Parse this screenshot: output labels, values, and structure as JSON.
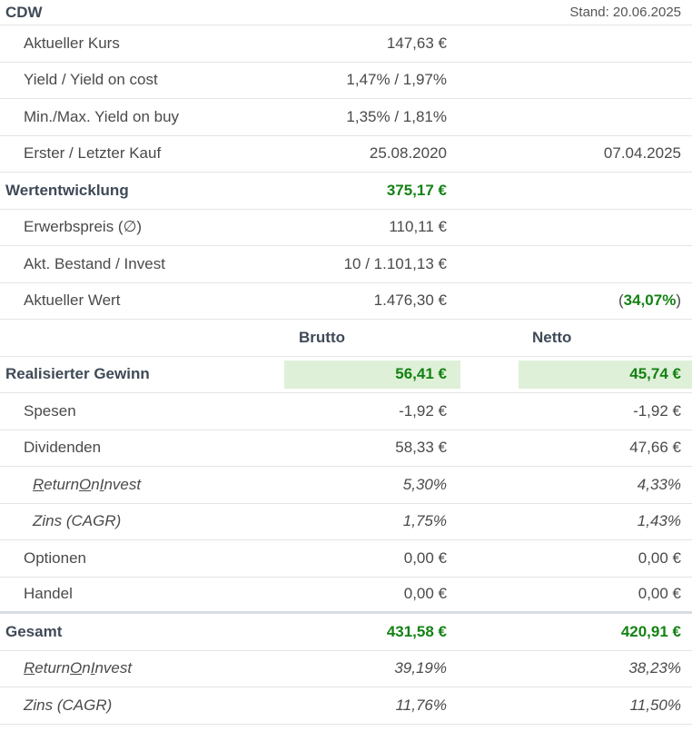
{
  "header": {
    "ticker": "CDW",
    "stand": "Stand: 20.06.2025"
  },
  "rows": {
    "kurs": {
      "label": "Aktueller Kurs",
      "value": "147,63 €"
    },
    "yield": {
      "label": "Yield / Yield on cost",
      "value": "1,47% / 1,97%"
    },
    "minmax": {
      "label": "Min./Max. Yield on buy",
      "value": "1,35% / 1,81%"
    },
    "kauf": {
      "label": "Erster / Letzter Kauf",
      "first": "25.08.2020",
      "last": "07.04.2025"
    },
    "wert_entw": {
      "label": "Wertentwicklung",
      "value": "375,17 €"
    },
    "erwerb": {
      "label": "Erwerbspreis (∅)",
      "value": "110,11 €"
    },
    "bestand": {
      "label": "Akt. Bestand / Invest",
      "value": "10 / 1.101,13 €"
    },
    "akt_wert": {
      "label": "Aktueller Wert",
      "value": "1.476,30 €",
      "pct_open": "(",
      "pct": "34,07%",
      "pct_close": ")"
    }
  },
  "columns": {
    "brutto": "Brutto",
    "netto": "Netto"
  },
  "realisiert": {
    "label": "Realisierter Gewinn",
    "brutto": "56,41 €",
    "netto": "45,74 €"
  },
  "spesen": {
    "label": "Spesen",
    "brutto": "-1,92 €",
    "netto": "-1,92 €"
  },
  "dividenden": {
    "label": "Dividenden",
    "brutto": "58,33 €",
    "netto": "47,66 €"
  },
  "roi1": {
    "label_r": "R",
    "label_eturn": "eturn ",
    "label_o": "O",
    "label_n": "n ",
    "label_i": "I",
    "label_nvest": "nvest",
    "brutto": "5,30%",
    "netto": "4,33%"
  },
  "zins1": {
    "label": "Zins (CAGR)",
    "brutto": "1,75%",
    "netto": "1,43%"
  },
  "optionen": {
    "label": "Optionen",
    "brutto": "0,00 €",
    "netto": "0,00 €"
  },
  "handel": {
    "label": "Handel",
    "brutto": "0,00 €",
    "netto": "0,00 €"
  },
  "gesamt": {
    "label": "Gesamt",
    "brutto": "431,58 €",
    "netto": "420,91 €"
  },
  "roi2": {
    "brutto": "39,19%",
    "netto": "38,23%"
  },
  "zins2": {
    "label": "Zins (CAGR)",
    "brutto": "11,76%",
    "netto": "11,50%"
  },
  "colors": {
    "green": "#148214",
    "highlight": "#dff0d8"
  }
}
